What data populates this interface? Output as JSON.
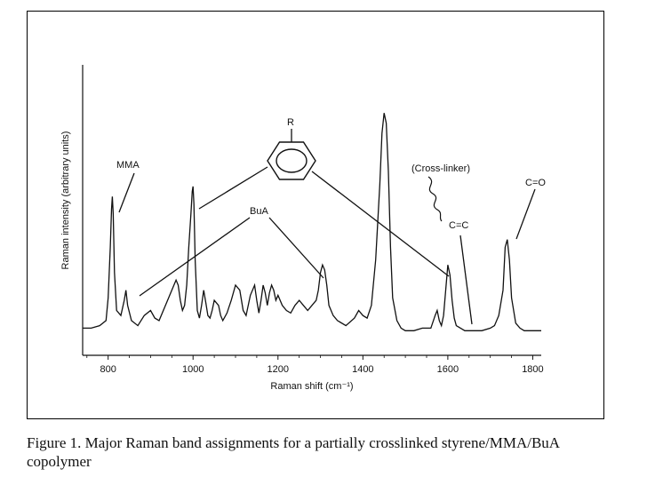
{
  "chart_data": {
    "type": "line",
    "title": "",
    "xlabel": "Raman shift (cm⁻¹)",
    "ylabel": "Raman intensity (arbitrary units)",
    "xlim": [
      740,
      1820
    ],
    "ylim": [
      0,
      100
    ],
    "x_ticks": [
      800,
      1000,
      1200,
      1400,
      1600,
      1800
    ],
    "grid": false,
    "legend": "none",
    "series": [
      {
        "values_x": [
          740,
          760,
          780,
          795,
          800,
          805,
          808,
          810,
          812,
          815,
          820,
          830,
          838,
          842,
          846,
          855,
          870,
          885,
          900,
          910,
          920,
          935,
          950,
          960,
          965,
          970,
          975,
          980,
          985,
          990,
          995,
          998,
          1000,
          1002,
          1005,
          1010,
          1015,
          1020,
          1025,
          1030,
          1035,
          1040,
          1045,
          1050,
          1060,
          1065,
          1070,
          1080,
          1090,
          1100,
          1110,
          1118,
          1125,
          1135,
          1145,
          1150,
          1155,
          1160,
          1165,
          1170,
          1175,
          1180,
          1185,
          1190,
          1195,
          1200,
          1210,
          1220,
          1230,
          1240,
          1250,
          1260,
          1270,
          1280,
          1290,
          1295,
          1300,
          1305,
          1310,
          1315,
          1320,
          1330,
          1340,
          1360,
          1380,
          1390,
          1400,
          1410,
          1420,
          1430,
          1440,
          1445,
          1450,
          1455,
          1460,
          1465,
          1470,
          1480,
          1490,
          1500,
          1520,
          1540,
          1560,
          1570,
          1575,
          1580,
          1585,
          1590,
          1595,
          1600,
          1605,
          1610,
          1615,
          1620,
          1630,
          1640,
          1660,
          1680,
          1700,
          1710,
          1720,
          1730,
          1735,
          1740,
          1745,
          1750,
          1760,
          1770,
          1780,
          1800,
          1820
        ],
        "values_y": [
          3,
          3,
          4,
          6,
          15,
          35,
          50,
          55,
          48,
          25,
          10,
          8,
          14,
          18,
          12,
          6,
          4,
          8,
          10,
          7,
          6,
          12,
          18,
          22,
          20,
          14,
          10,
          12,
          20,
          35,
          48,
          57,
          59,
          52,
          30,
          10,
          7,
          12,
          18,
          13,
          8,
          7,
          10,
          14,
          12,
          8,
          6,
          9,
          14,
          20,
          18,
          10,
          8,
          16,
          20,
          14,
          9,
          14,
          20,
          17,
          12,
          17,
          20,
          18,
          14,
          16,
          12,
          10,
          9,
          12,
          14,
          12,
          10,
          12,
          14,
          18,
          25,
          28,
          26,
          20,
          12,
          8,
          6,
          4,
          7,
          10,
          8,
          7,
          12,
          30,
          60,
          80,
          88,
          84,
          65,
          35,
          15,
          6,
          3,
          2,
          2,
          3,
          3,
          8,
          10,
          6,
          4,
          8,
          18,
          28,
          24,
          14,
          7,
          4,
          3,
          2,
          2,
          2,
          3,
          4,
          8,
          18,
          35,
          38,
          30,
          15,
          5,
          3,
          2,
          2,
          2
        ]
      }
    ],
    "annotations": [
      {
        "text": "MMA",
        "x": 808,
        "y": 72
      },
      {
        "text": "R",
        "x": 1005,
        "y": 92
      },
      {
        "text": "BuA",
        "x": 1150,
        "y": 52
      },
      {
        "text": "(Cross-linker)",
        "x": 1560,
        "y": 70
      },
      {
        "text": "C=C",
        "x": 1640,
        "y": 44
      },
      {
        "text": "C=O",
        "x": 1720,
        "y": 62
      }
    ]
  },
  "caption": {
    "line1": "Figure 1. Major Raman band assignments for a partially crosslinked styrene/MMA/BuA",
    "line2": "copolymer"
  }
}
